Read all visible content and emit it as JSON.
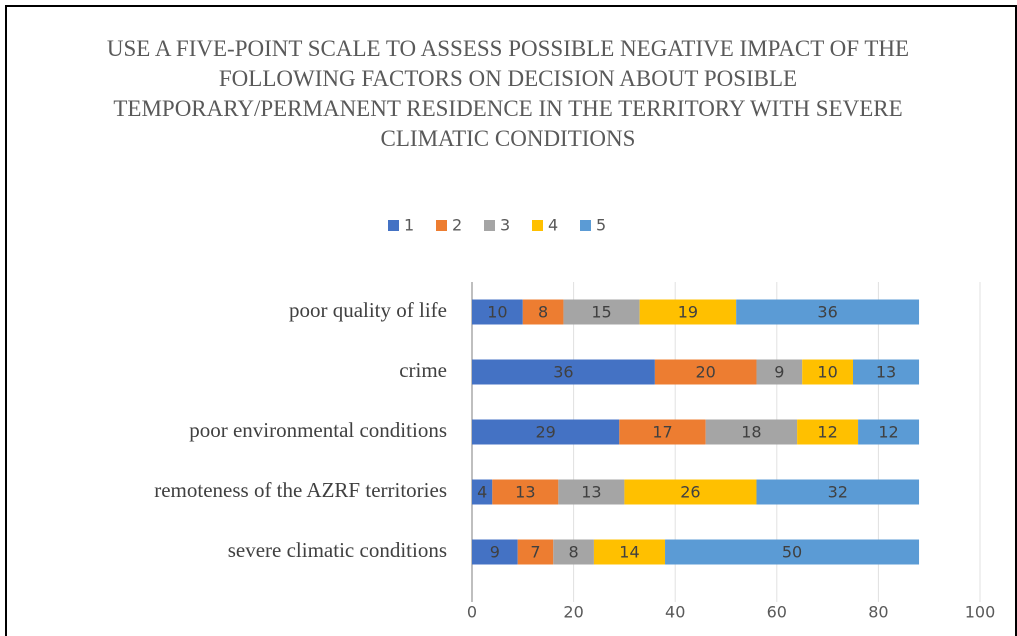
{
  "chart_data": {
    "type": "stacked_barh",
    "title": "USE A FIVE-POINT SCALE TO ASSESS POSSIBLE NEGATIVE IMPACT OF THE FOLLOWING FACTORS ON DECISION ABOUT POSIBLE TEMPORARY/PERMANENT RESIDENCE IN THE TERRITORY WITH SEVERE CLIMATIC CONDITIONS",
    "categories": [
      "poor quality of life",
      "crime",
      "poor environmental conditions",
      "remoteness of the AZRF territories",
      "severe climatic conditions"
    ],
    "series": [
      {
        "name": "1",
        "color": "#4472c4",
        "values": [
          10,
          36,
          29,
          4,
          9
        ]
      },
      {
        "name": "2",
        "color": "#ed7d31",
        "values": [
          8,
          20,
          17,
          13,
          7
        ]
      },
      {
        "name": "3",
        "color": "#a5a5a5",
        "values": [
          15,
          9,
          18,
          13,
          8
        ]
      },
      {
        "name": "4",
        "color": "#ffc000",
        "values": [
          19,
          10,
          12,
          26,
          14
        ]
      },
      {
        "name": "5",
        "color": "#5b9bd5",
        "values": [
          36,
          13,
          12,
          32,
          50
        ]
      }
    ],
    "xlim": [
      0,
      100
    ],
    "xticks": [
      0,
      20,
      40,
      60,
      80,
      100
    ],
    "grid": true,
    "legend": "top"
  }
}
